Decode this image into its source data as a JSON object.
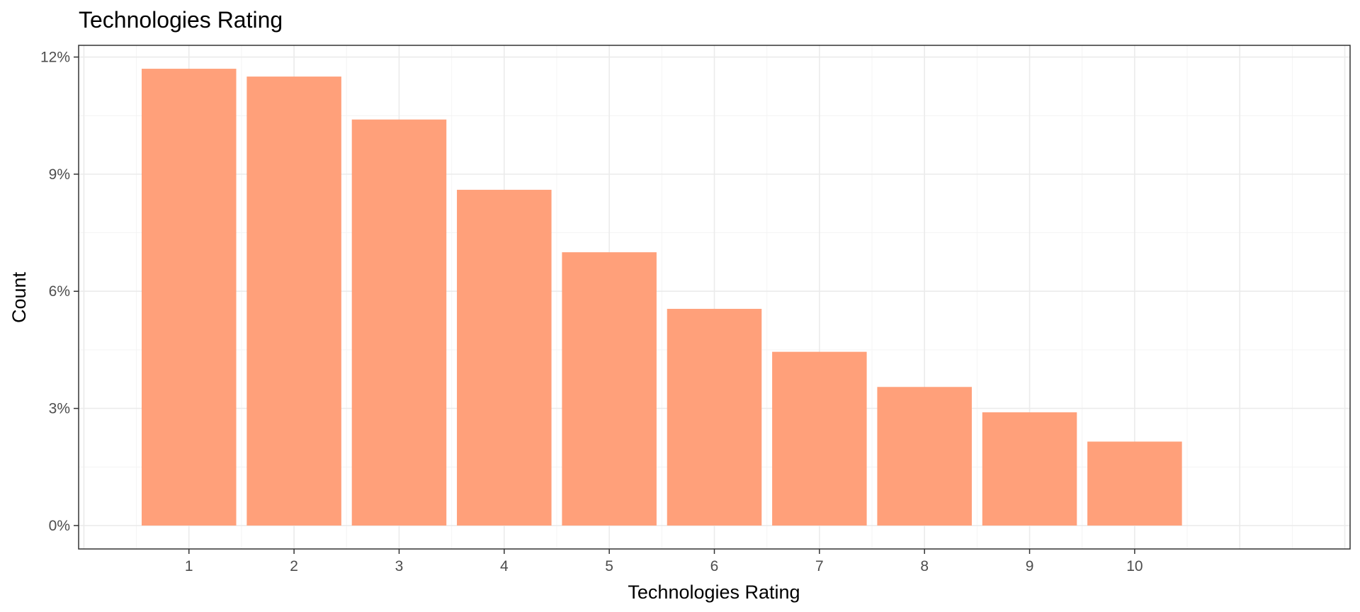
{
  "chart_data": {
    "type": "bar",
    "title": "Technologies Rating",
    "xlabel": "Technologies Rating",
    "ylabel": "Count",
    "categories": [
      "1",
      "2",
      "3",
      "4",
      "5",
      "6",
      "7",
      "8",
      "9",
      "10"
    ],
    "values": [
      11.7,
      11.5,
      10.4,
      8.6,
      7.0,
      5.55,
      4.45,
      3.55,
      2.9,
      2.15
    ],
    "ylim": [
      -0.6,
      12.3
    ],
    "xlim": [
      -0.05,
      12.05
    ],
    "yticks": [
      0,
      3,
      6,
      9,
      12
    ],
    "ytick_labels": [
      "0%",
      "3%",
      "6%",
      "9%",
      "12%"
    ],
    "grid": true,
    "legend": "none",
    "colors": {
      "bar_fill": "#FFA07A",
      "grid_major": "#EBEBEB",
      "grid_minor": "#F4F4F4",
      "panel_border": "#333333",
      "tick_text": "#4D4D4D"
    }
  }
}
